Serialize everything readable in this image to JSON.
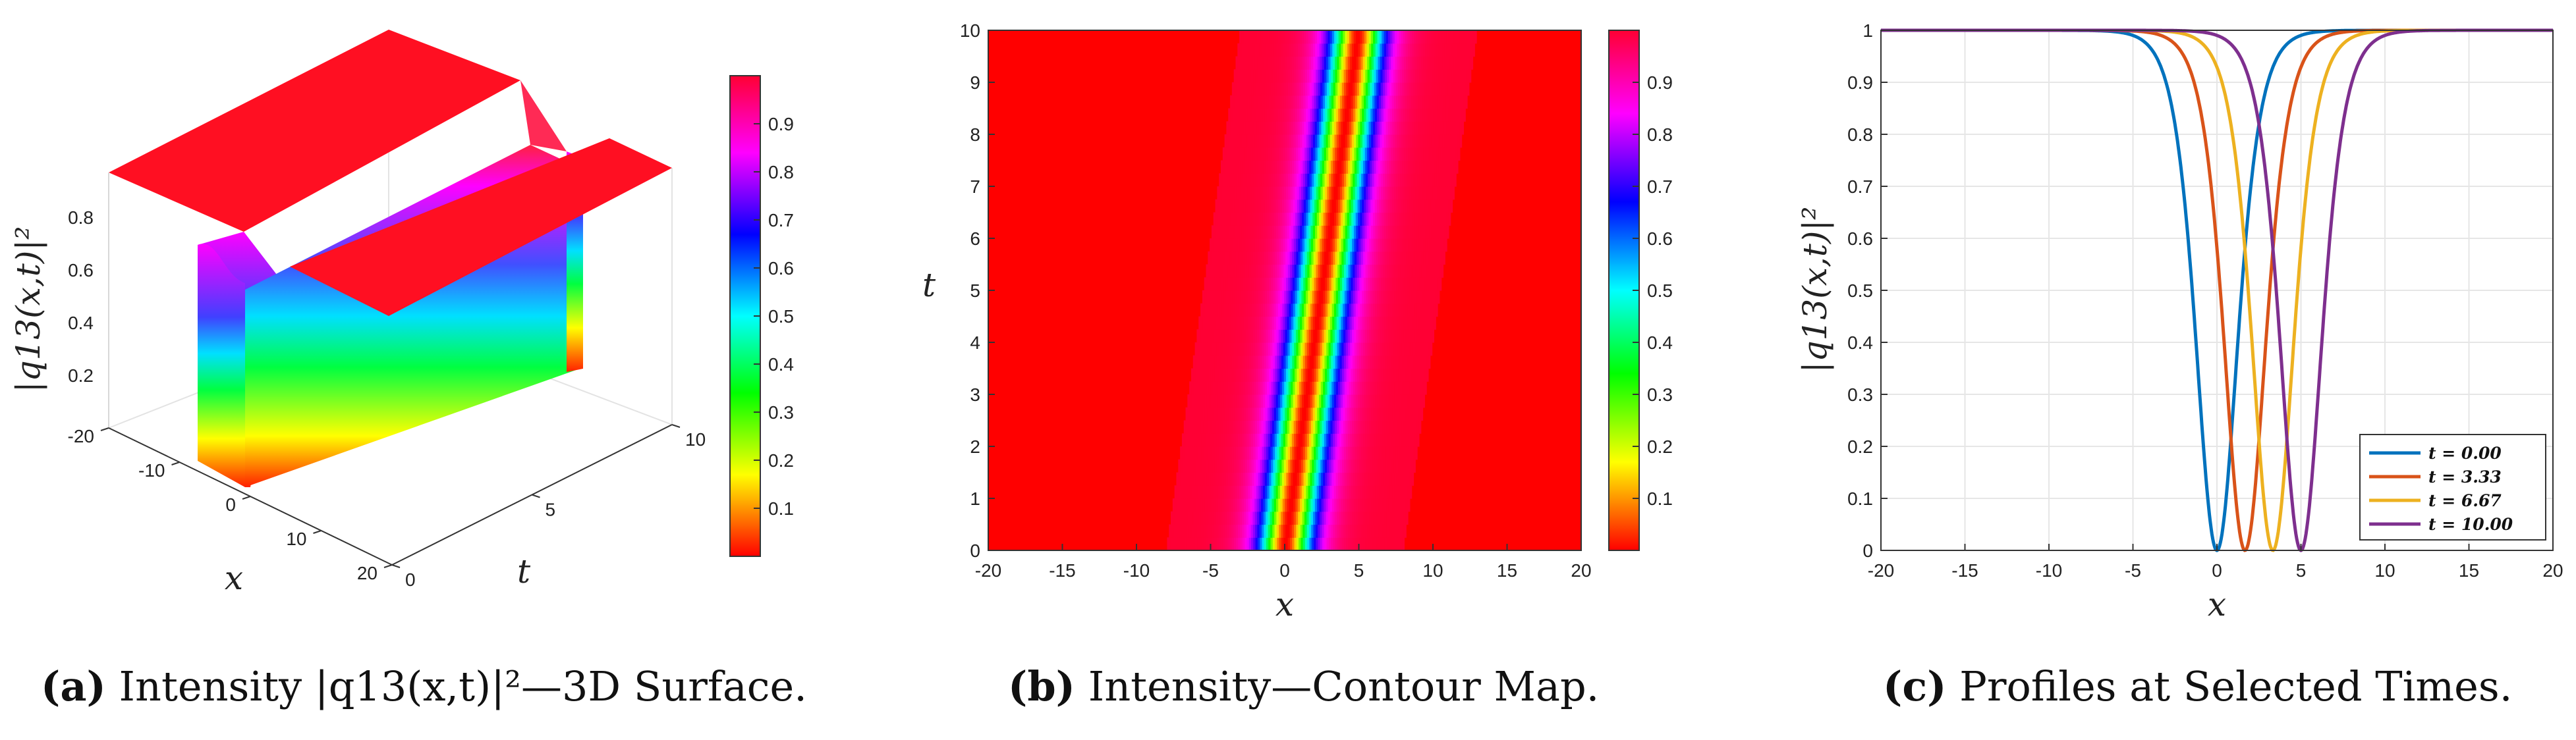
{
  "colors": {
    "c1": "#0072BD",
    "c2": "#D95319",
    "c3": "#EDB120",
    "c4": "#7E2F8E"
  },
  "colorbar_stops": [
    "#ff0000",
    "#ffff00",
    "#00ff00",
    "#00ffff",
    "#0000ff",
    "#ff00ff",
    "#ff0033"
  ],
  "panel_a": {
    "caption_letter": "(a)",
    "caption_rest": " Intensity |q13(x,t)|²—3D Surface.",
    "zlabel": "|q13(x,t)|²",
    "xlabel": "x",
    "ylabel": "t"
  },
  "panel_b": {
    "caption_letter": "(b)",
    "caption_rest": " Intensity—Contour Map.",
    "xlabel": "x",
    "ylabel": "t"
  },
  "panel_c": {
    "caption_letter": "(c)",
    "caption_rest": " Profiles at Selected Times.",
    "xlabel": "x",
    "ylabel": "|q13(x,t)|²"
  },
  "chart_data": [
    {
      "type": "surface",
      "x_range": [
        -20,
        20
      ],
      "t_range": [
        0,
        10
      ],
      "z_range": [
        0,
        1
      ],
      "x_ticks": [
        -20,
        -10,
        0,
        10,
        20
      ],
      "t_ticks": [
        0,
        5,
        10
      ],
      "z_ticks": [
        0.2,
        0.4,
        0.6,
        0.8
      ],
      "colorbar_ticks": [
        0.1,
        0.2,
        0.3,
        0.4,
        0.5,
        0.6,
        0.7,
        0.8,
        0.9
      ],
      "dark_soliton": {
        "center_at_t0": 0,
        "velocity": 0.5,
        "min_intensity": 0,
        "background": 1
      }
    },
    {
      "type": "heatmap",
      "x_range": [
        -20,
        20
      ],
      "t_range": [
        0,
        10
      ],
      "x_ticks": [
        -20,
        -15,
        -10,
        -5,
        0,
        5,
        10,
        15,
        20
      ],
      "t_ticks": [
        0,
        1,
        2,
        3,
        4,
        5,
        6,
        7,
        8,
        9,
        10
      ],
      "colorbar_ticks": [
        0.1,
        0.2,
        0.3,
        0.4,
        0.5,
        0.6,
        0.7,
        0.8,
        0.9
      ],
      "dark_soliton": {
        "center_at_t0": 0,
        "velocity": 0.5,
        "min_intensity": 0,
        "background": 1
      }
    },
    {
      "type": "line",
      "x_range": [
        -20,
        20
      ],
      "ylim": [
        0,
        1
      ],
      "x_ticks": [
        -20,
        -15,
        -10,
        -5,
        0,
        5,
        10,
        15,
        20
      ],
      "y_ticks": [
        0,
        0.1,
        0.2,
        0.3,
        0.4,
        0.5,
        0.6,
        0.7,
        0.8,
        0.9,
        1
      ],
      "grid": true,
      "legend_position": "bottom-right",
      "series": [
        {
          "name": "t = 0.00",
          "t": 0.0,
          "center": 0.0,
          "color": "#0072BD"
        },
        {
          "name": "t = 3.33",
          "t": 3.33,
          "center": 1.67,
          "color": "#D95319"
        },
        {
          "name": "t = 6.67",
          "t": 6.67,
          "center": 3.33,
          "color": "#EDB120"
        },
        {
          "name": "t = 10.00",
          "t": 10.0,
          "center": 5.0,
          "color": "#7E2F8E"
        }
      ]
    }
  ]
}
